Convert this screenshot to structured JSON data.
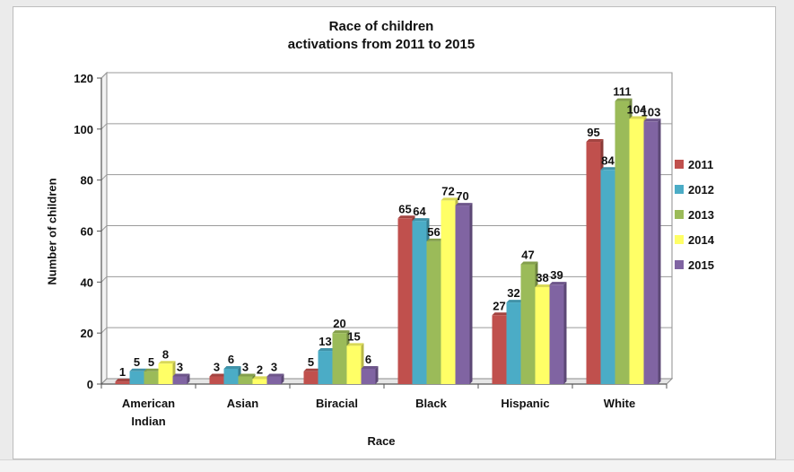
{
  "chart_data": {
    "type": "bar",
    "title": [
      "Race of children",
      "activations from 2011 to 2015"
    ],
    "xlabel": "Race",
    "ylabel": "Number of children",
    "ylim": [
      0,
      120
    ],
    "yticks": [
      0,
      20,
      40,
      60,
      80,
      100,
      120
    ],
    "grid": true,
    "legend_position": "right",
    "categories": [
      [
        "American",
        "Indian"
      ],
      [
        "Asian"
      ],
      [
        "Biracial"
      ],
      [
        "Black"
      ],
      [
        "Hispanic"
      ],
      [
        "White"
      ]
    ],
    "series": [
      {
        "name": "2011",
        "color": "#c0504d",
        "values": [
          1,
          3,
          5,
          65,
          27,
          95
        ]
      },
      {
        "name": "2012",
        "color": "#4bacc6",
        "values": [
          5,
          6,
          13,
          64,
          32,
          84
        ]
      },
      {
        "name": "2013",
        "color": "#9bbb59",
        "values": [
          5,
          3,
          20,
          56,
          47,
          111
        ]
      },
      {
        "name": "2014",
        "color": "#ffff66",
        "values": [
          8,
          2,
          15,
          72,
          38,
          104
        ]
      },
      {
        "name": "2015",
        "color": "#8064a2",
        "values": [
          3,
          3,
          6,
          70,
          39,
          103
        ]
      }
    ]
  }
}
